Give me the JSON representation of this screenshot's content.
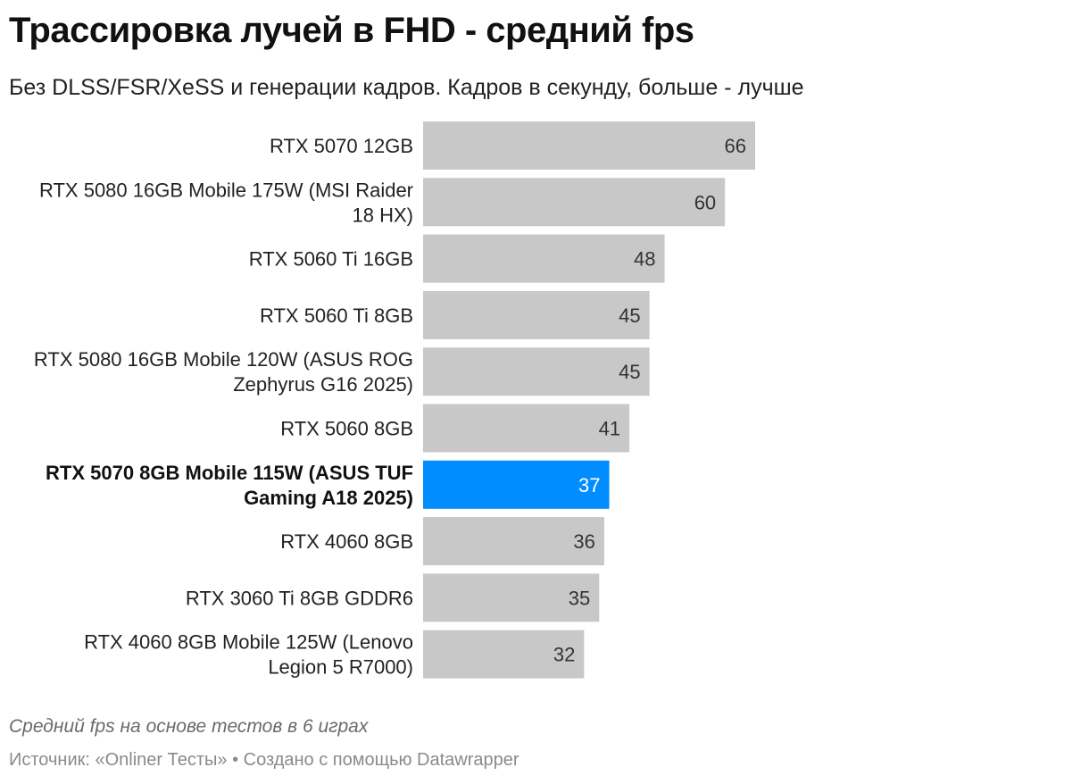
{
  "chart_data": {
    "type": "bar",
    "orientation": "horizontal",
    "title": "Трассировка лучей в FHD - средний fps",
    "subtitle": "Без DLSS/FSR/XeSS и генерации кадров. Кадров в секунду, больше - лучше",
    "categories": [
      "RTX 5070 12GB",
      "RTX 5080 16GB Mobile 175W (MSI Raider 18 HX)",
      "RTX 5060 Ti 16GB",
      "RTX 5060 Ti 8GB",
      "RTX 5080 16GB Mobile 120W (ASUS ROG Zephyrus G16 2025)",
      "RTX 5060 8GB",
      "RTX 5070 8GB Mobile 115W (ASUS TUF Gaming A18 2025)",
      "RTX 4060 8GB",
      "RTX 3060 Ti 8GB GDDR6",
      "RTX 4060 8GB Mobile 125W (Lenovo Legion 5 R7000)"
    ],
    "category_lines": [
      [
        "RTX 5070 12GB"
      ],
      [
        "RTX 5080 16GB Mobile 175W (MSI Raider",
        "18 HX)"
      ],
      [
        "RTX 5060 Ti 16GB"
      ],
      [
        "RTX 5060 Ti 8GB"
      ],
      [
        "RTX 5080 16GB Mobile 120W (ASUS ROG",
        "Zephyrus G16 2025)"
      ],
      [
        "RTX 5060 8GB"
      ],
      [
        "RTX 5070 8GB Mobile 115W (ASUS TUF",
        "Gaming A18 2025)"
      ],
      [
        "RTX 4060 8GB"
      ],
      [
        "RTX 3060 Ti 8GB GDDR6"
      ],
      [
        "RTX 4060 8GB Mobile 125W (Lenovo",
        "Legion 5 R7000)"
      ]
    ],
    "values": [
      66,
      60,
      48,
      45,
      45,
      41,
      37,
      36,
      35,
      32
    ],
    "highlight_index": 6,
    "xlim": [
      0,
      66
    ],
    "grid": false,
    "legend": "none",
    "note": "Средний fps на основе тестов в 6 играх",
    "footer": "Источник: «Onliner Тесты» • Создано с помощью Datawrapper"
  },
  "colors": {
    "bar": "#c8c8c8",
    "highlight": "#008dff",
    "text": "#222222"
  }
}
